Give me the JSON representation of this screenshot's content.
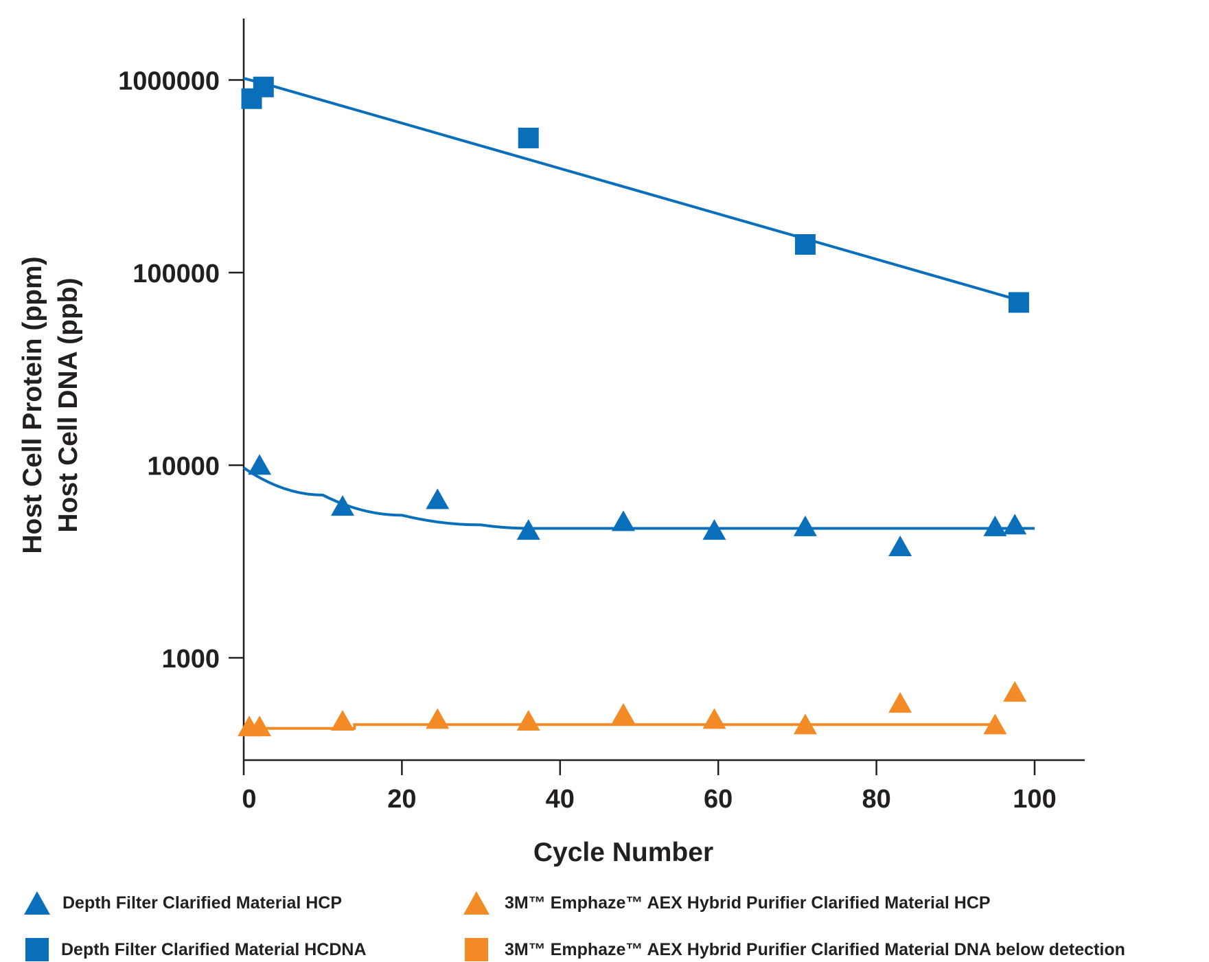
{
  "colors": {
    "blue": "#0a6fba",
    "orange": "#f28a26",
    "axis": "#231f20"
  },
  "chart_data": {
    "type": "scatter",
    "title": "",
    "xlabel": "Cycle Number",
    "ylabel_lines": [
      "Host Cell Protein  (ppm)",
      "Host Cell DNA (ppb)"
    ],
    "xlim": [
      0,
      107
    ],
    "ylim": [
      300,
      2000000
    ],
    "yscale": "log",
    "xticks": [
      0,
      20,
      40,
      60,
      80,
      100
    ],
    "xtick_labels": [
      "0",
      "20",
      "40",
      "60",
      "80",
      "100"
    ],
    "yticks": [
      1000,
      10000,
      100000,
      1000000
    ],
    "ytick_labels": [
      "1000",
      "10000",
      "100000",
      "1000000"
    ],
    "grid": false,
    "legend_position": "bottom",
    "series": [
      {
        "name": "Depth Filter Clarified Material HCP",
        "marker": "triangle",
        "color": "#0a6fba",
        "x": [
          2,
          12.5,
          24.5,
          36,
          48,
          59.5,
          71,
          83,
          95,
          97.5
        ],
        "y": [
          9800,
          6000,
          6500,
          4500,
          5000,
          4500,
          4700,
          3700,
          4700,
          4800
        ],
        "trend_x": [
          0,
          10,
          20,
          30,
          36,
          100
        ],
        "trend_y": [
          9700,
          7000,
          5500,
          4900,
          4700,
          4700
        ]
      },
      {
        "name": "Depth Filter Clarified Material HCDNA",
        "marker": "square",
        "color": "#0a6fba",
        "x": [
          1,
          2.5,
          36,
          71,
          98
        ],
        "y": [
          800000,
          920000,
          500000,
          140000,
          70000
        ],
        "trend_x": [
          0,
          2.5,
          98
        ],
        "trend_y": [
          1020000,
          960000,
          72000
        ]
      },
      {
        "name": "3M™ Emphaze™ AEX Hybrid Purifier Clarified Material HCP",
        "marker": "triangle",
        "color": "#f28a26",
        "x": [
          0.7,
          2,
          12.5,
          24.5,
          36,
          48,
          59.5,
          71,
          83,
          95,
          97.5
        ],
        "y": [
          430,
          430,
          460,
          470,
          460,
          500,
          470,
          440,
          570,
          440,
          650
        ],
        "trend_x": [
          0,
          14,
          14,
          95
        ],
        "trend_y": [
          430,
          430,
          450,
          450
        ]
      },
      {
        "name": "3M™ Emphaze™ AEX Hybrid Purifier Clarified Material DNA below detection",
        "marker": "square",
        "color": "#f28a26",
        "x": [],
        "y": []
      }
    ]
  }
}
